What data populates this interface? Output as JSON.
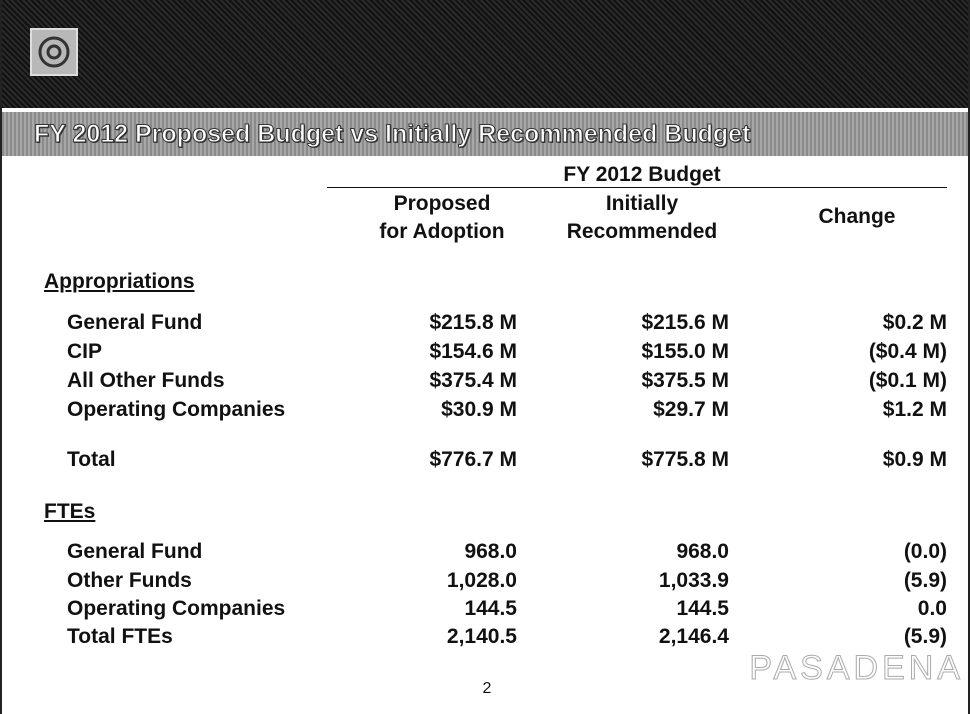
{
  "header": {
    "title": "FY 2012 Proposed Budget vs Initially Recommended Budget"
  },
  "table": {
    "group_header": "FY 2012 Budget",
    "columns": [
      [
        "Proposed",
        "for Adoption"
      ],
      [
        "Initially",
        "Recommended"
      ],
      [
        "Change"
      ]
    ],
    "sections": [
      {
        "title": "Appropriations",
        "rows": [
          [
            "General Fund",
            "$215.8 M",
            "$215.6 M",
            "$0.2 M"
          ],
          [
            "CIP",
            "$154.6 M",
            "$155.0 M",
            "($0.4 M)"
          ],
          [
            "All Other Funds",
            "$375.4 M",
            "$375.5 M",
            "($0.1 M)"
          ],
          [
            "Operating Companies",
            "$30.9 M",
            "$29.7 M",
            "$1.2 M"
          ],
          [
            "Total",
            "$776.7 M",
            "$775.8 M",
            "$0.9 M"
          ]
        ]
      },
      {
        "title": "FTEs",
        "rows": [
          [
            "General Fund",
            "968.0",
            "968.0",
            "(0.0)"
          ],
          [
            "Other Funds",
            "1,028.0",
            "1,033.9",
            "(5.9)"
          ],
          [
            "Operating Companies",
            "144.5",
            "144.5",
            "0.0"
          ],
          [
            "Total FTEs",
            "2,140.5",
            "2,146.4",
            "(5.9)"
          ]
        ]
      }
    ]
  },
  "footer": {
    "page": "2",
    "brand": "PASADENA"
  }
}
